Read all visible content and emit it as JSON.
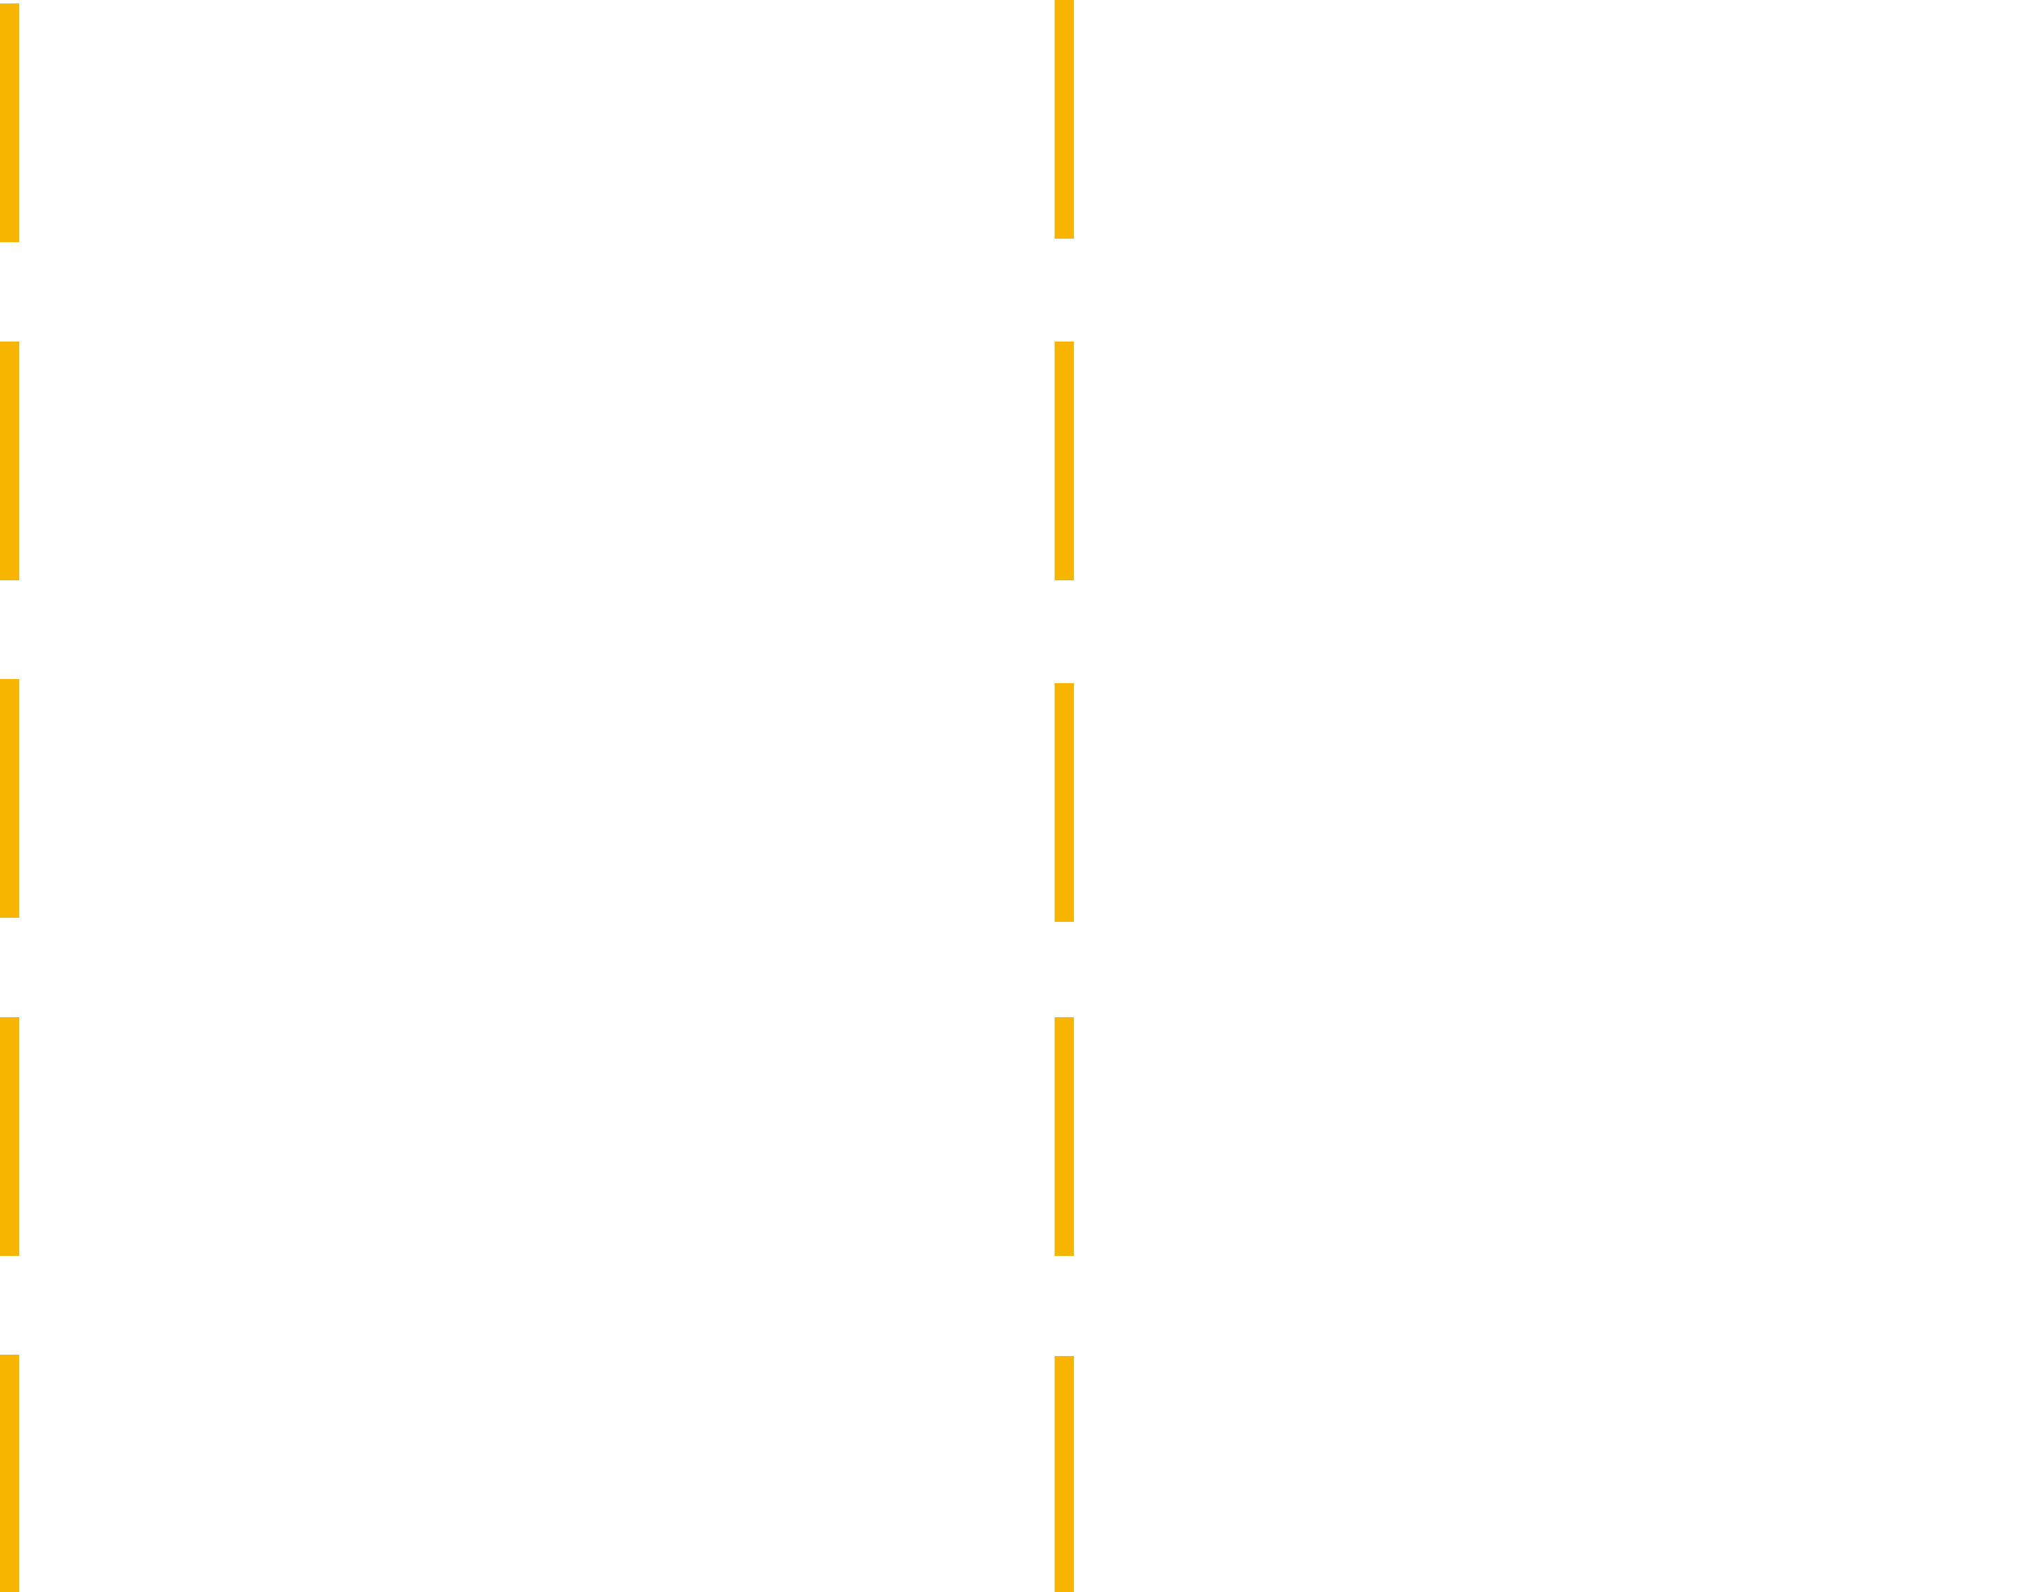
{
  "colors": {
    "background": "#ffffff",
    "marker": "#f7b500"
  },
  "columns": [
    {
      "name": "left",
      "bar_count": 5
    },
    {
      "name": "right",
      "bar_count": 5
    }
  ]
}
